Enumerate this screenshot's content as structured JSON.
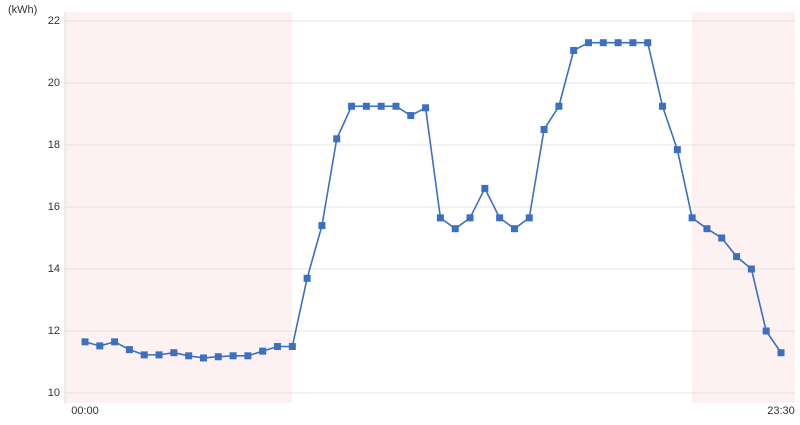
{
  "chart_data": {
    "type": "line",
    "y_label": "(kWh)",
    "categories": [
      "00:00",
      null,
      null,
      null,
      null,
      null,
      null,
      null,
      null,
      null,
      null,
      null,
      null,
      null,
      null,
      null,
      null,
      null,
      null,
      null,
      null,
      null,
      null,
      null,
      null,
      null,
      null,
      null,
      null,
      null,
      null,
      null,
      null,
      null,
      null,
      null,
      null,
      null,
      null,
      null,
      null,
      null,
      null,
      null,
      null,
      null,
      null,
      "23:30"
    ],
    "series": [
      {
        "color": "#3b6fc2",
        "values": [
          11.65,
          11.52,
          11.65,
          11.4,
          11.23,
          11.23,
          11.3,
          11.2,
          11.13,
          11.17,
          11.2,
          11.2,
          11.35,
          11.5,
          11.5,
          13.7,
          15.4,
          18.2,
          19.25,
          19.25,
          19.25,
          19.25,
          18.95,
          19.2,
          15.65,
          15.3,
          15.65,
          16.6,
          15.65,
          15.3,
          15.65,
          18.5,
          19.25,
          21.05,
          21.3,
          21.3,
          21.3,
          21.3,
          21.3,
          19.25,
          17.85,
          15.65,
          15.3,
          15.0,
          14.4,
          14.0,
          12.0,
          11.3
        ]
      }
    ],
    "ylim": [
      10,
      22
    ],
    "yticks": [
      10,
      12,
      14,
      16,
      18,
      20,
      22
    ],
    "grid": true
  }
}
